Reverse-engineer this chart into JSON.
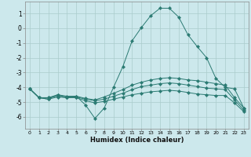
{
  "xlabel": "Humidex (Indice chaleur)",
  "xlim": [
    -0.5,
    23.5
  ],
  "ylim": [
    -6.8,
    1.8
  ],
  "bg_color": "#cce8ec",
  "grid_color": "#aacccc",
  "line_color": "#2a7a72",
  "xticks": [
    0,
    1,
    2,
    3,
    4,
    5,
    6,
    7,
    8,
    9,
    10,
    11,
    12,
    13,
    14,
    15,
    16,
    17,
    18,
    19,
    20,
    21,
    22,
    23
  ],
  "yticks": [
    1,
    0,
    -1,
    -2,
    -3,
    -4,
    -5,
    -6
  ],
  "lines": [
    {
      "x": [
        0,
        1,
        2,
        3,
        4,
        5,
        6,
        7,
        8,
        9,
        10,
        11,
        12,
        13,
        14,
        15,
        16,
        17,
        18,
        19,
        20,
        21,
        22,
        23
      ],
      "y": [
        -4.1,
        -4.7,
        -4.8,
        -4.5,
        -4.7,
        -4.6,
        -5.2,
        -6.1,
        -5.4,
        -4.0,
        -2.6,
        -0.85,
        0.05,
        0.85,
        1.35,
        1.35,
        0.75,
        -0.45,
        -1.25,
        -2.0,
        -3.4,
        -4.0,
        -4.1,
        -5.4
      ]
    },
    {
      "x": [
        0,
        1,
        2,
        3,
        4,
        5,
        6,
        7,
        8,
        9,
        10,
        11,
        12,
        13,
        14,
        15,
        16,
        17,
        18,
        19,
        20,
        21,
        22,
        23
      ],
      "y": [
        -4.1,
        -4.7,
        -4.7,
        -4.5,
        -4.6,
        -4.6,
        -4.75,
        -4.85,
        -4.65,
        -4.4,
        -4.15,
        -3.85,
        -3.65,
        -3.5,
        -3.4,
        -3.35,
        -3.4,
        -3.5,
        -3.55,
        -3.65,
        -3.75,
        -3.85,
        -4.7,
        -5.4
      ]
    },
    {
      "x": [
        0,
        1,
        2,
        3,
        4,
        5,
        6,
        7,
        8,
        9,
        10,
        11,
        12,
        13,
        14,
        15,
        16,
        17,
        18,
        19,
        20,
        21,
        22,
        23
      ],
      "y": [
        -4.1,
        -4.7,
        -4.7,
        -4.6,
        -4.65,
        -4.65,
        -4.8,
        -4.9,
        -4.8,
        -4.6,
        -4.4,
        -4.15,
        -3.95,
        -3.85,
        -3.75,
        -3.7,
        -3.75,
        -3.85,
        -3.95,
        -4.05,
        -4.1,
        -4.15,
        -4.85,
        -5.55
      ]
    },
    {
      "x": [
        0,
        1,
        2,
        3,
        4,
        5,
        6,
        7,
        8,
        9,
        10,
        11,
        12,
        13,
        14,
        15,
        16,
        17,
        18,
        19,
        20,
        21,
        22,
        23
      ],
      "y": [
        -4.1,
        -4.7,
        -4.8,
        -4.65,
        -4.7,
        -4.7,
        -4.9,
        -5.05,
        -4.95,
        -4.8,
        -4.65,
        -4.5,
        -4.4,
        -4.3,
        -4.25,
        -4.2,
        -4.25,
        -4.35,
        -4.45,
        -4.5,
        -4.55,
        -4.55,
        -5.05,
        -5.65
      ]
    }
  ]
}
